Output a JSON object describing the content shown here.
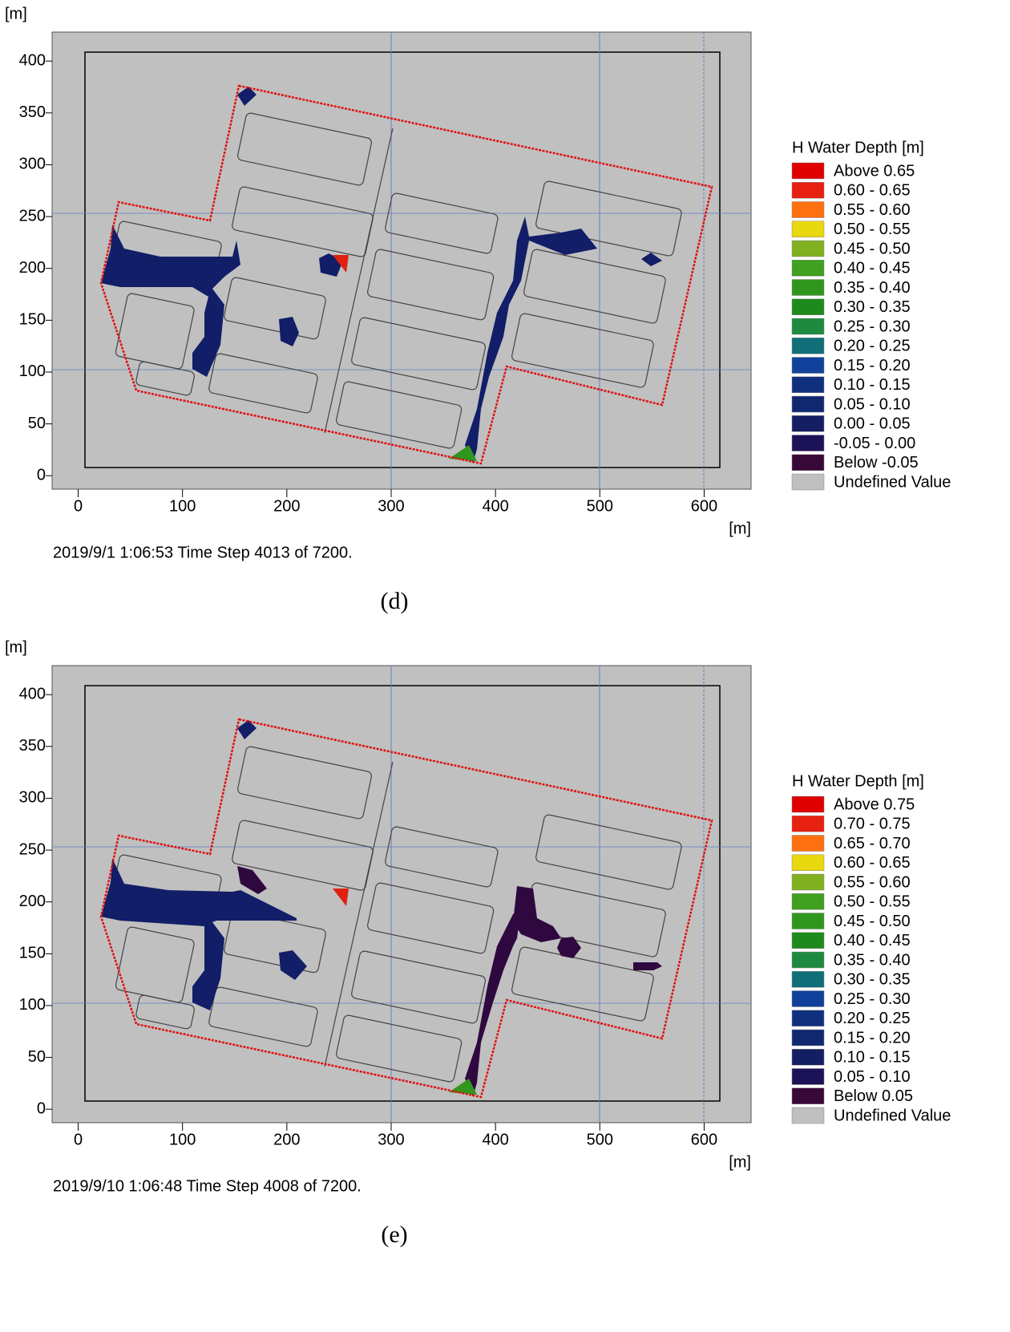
{
  "chart_data": [
    {
      "type": "map",
      "x_label": "[m]",
      "y_label": "[m]",
      "xlim": [
        -25,
        645
      ],
      "ylim": [
        -13,
        428
      ],
      "xticks": [
        0,
        100,
        200,
        300,
        400,
        500,
        600
      ],
      "yticks": [
        0,
        50,
        100,
        150,
        200,
        250,
        300,
        350,
        400
      ],
      "legend_title": "H Water Depth [m]",
      "categories": [
        "Above 0.65",
        "0.60 - 0.65",
        "0.55 - 0.60",
        "0.50 - 0.55",
        "0.45 - 0.50",
        "0.40 - 0.45",
        "0.35 - 0.40",
        "0.30 - 0.35",
        "0.25 - 0.30",
        "0.20 - 0.25",
        "0.15 - 0.20",
        "0.10 - 0.15",
        "0.05 - 0.10",
        "0.00 - 0.05",
        "-0.05 - 0.00",
        "Below -0.05",
        "Undefined Value"
      ],
      "colors": [
        "#e00000",
        "#e82010",
        "#ff7010",
        "#e8d810",
        "#80b020",
        "#40a020",
        "#30961e",
        "#1e8a1e",
        "#1e8a40",
        "#106e78",
        "#10409a",
        "#10307e",
        "#102870",
        "#141e62",
        "#1c1258",
        "#380838",
        "#c0c0c0"
      ],
      "caption": "2019/9/1 1:06:53  Time Step 4013 of 7200.",
      "panel_label": "(d)"
    },
    {
      "type": "map",
      "x_label": "[m]",
      "y_label": "[m]",
      "xlim": [
        -25,
        645
      ],
      "ylim": [
        -13,
        428
      ],
      "xticks": [
        0,
        100,
        200,
        300,
        400,
        500,
        600
      ],
      "yticks": [
        0,
        50,
        100,
        150,
        200,
        250,
        300,
        350,
        400
      ],
      "legend_title": "H Water Depth [m]",
      "categories": [
        "Above 0.75",
        "0.70 - 0.75",
        "0.65 - 0.70",
        "0.60 - 0.65",
        "0.55 - 0.60",
        "0.50 - 0.55",
        "0.45 - 0.50",
        "0.40 - 0.45",
        "0.35 - 0.40",
        "0.30 - 0.35",
        "0.25 - 0.30",
        "0.20 - 0.25",
        "0.15 - 0.20",
        "0.10 - 0.15",
        "0.05 - 0.10",
        "Below 0.05",
        "Undefined Value"
      ],
      "colors": [
        "#e00000",
        "#e82010",
        "#ff7010",
        "#e8d810",
        "#80b020",
        "#40a020",
        "#30961e",
        "#1e8a1e",
        "#1e8a40",
        "#106e78",
        "#10409a",
        "#10307e",
        "#102870",
        "#141e62",
        "#1c1258",
        "#380838",
        "#c0c0c0"
      ],
      "caption": "2019/9/10 1:06:48  Time Step 4008 of 7200.",
      "panel_label": "(e)"
    }
  ]
}
